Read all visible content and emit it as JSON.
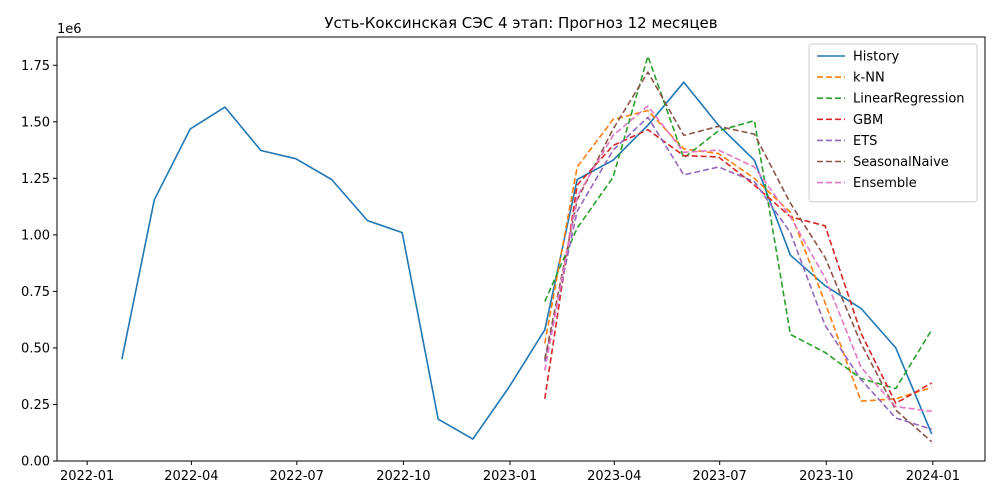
{
  "chart_data": {
    "type": "line",
    "title": "Усть-Коксинская СЭС 4 этап: Прогноз 12 месяцев",
    "xlabel": "",
    "ylabel": "",
    "y_multiplier_label": "1e6",
    "xlim": [
      "2021-12-06",
      "2024-02-15"
    ],
    "ylim": [
      0,
      1875000
    ],
    "x_ticks": [
      "2022-01-01",
      "2022-04-01",
      "2022-07-01",
      "2022-10-01",
      "2023-01-01",
      "2023-04-01",
      "2023-07-01",
      "2023-10-01",
      "2024-01-01"
    ],
    "x_tick_labels": [
      "2022-01",
      "2022-04",
      "2022-07",
      "2022-10",
      "2023-01",
      "2023-04",
      "2023-07",
      "2023-10",
      "2024-01"
    ],
    "y_ticks": [
      0,
      250000,
      500000,
      750000,
      1000000,
      1250000,
      1500000,
      1750000
    ],
    "y_tick_labels": [
      "0.00",
      "0.25",
      "0.50",
      "0.75",
      "1.00",
      "1.25",
      "1.50",
      "1.75"
    ],
    "grid": false,
    "legend_position": "top-right",
    "series": [
      {
        "name": "History",
        "color": "#1f77b4",
        "dash": "solid",
        "x": [
          "2022-01-31",
          "2022-02-28",
          "2022-03-31",
          "2022-04-30",
          "2022-05-31",
          "2022-06-30",
          "2022-07-31",
          "2022-08-31",
          "2022-09-30",
          "2022-10-31",
          "2022-11-30",
          "2022-12-31",
          "2023-01-31",
          "2023-02-28",
          "2023-03-31",
          "2023-04-30",
          "2023-05-31",
          "2023-06-30",
          "2023-07-31",
          "2023-08-31",
          "2023-09-30",
          "2023-10-31",
          "2023-11-30",
          "2023-12-31"
        ],
        "values": [
          450000,
          1155000,
          1468000,
          1565000,
          1373000,
          1337000,
          1245000,
          1063000,
          1010000,
          185000,
          97000,
          325000,
          580000,
          1245000,
          1330000,
          1485000,
          1675000,
          1485000,
          1330000,
          910000,
          775000,
          675000,
          500000,
          120000
        ]
      },
      {
        "name": "k-NN",
        "color": "#ff7f0e",
        "dash": "dashed",
        "x": [
          "2023-01-31",
          "2023-02-28",
          "2023-03-31",
          "2023-04-30",
          "2023-05-31",
          "2023-06-30",
          "2023-07-31",
          "2023-08-31",
          "2023-09-30",
          "2023-10-31",
          "2023-11-30",
          "2023-12-31"
        ],
        "values": [
          520000,
          1300000,
          1510000,
          1550000,
          1380000,
          1360000,
          1250000,
          1100000,
          700000,
          265000,
          275000,
          325000
        ]
      },
      {
        "name": "LinearRegression",
        "color": "#2ca02c",
        "dash": "dashed",
        "x": [
          "2023-01-31",
          "2023-02-28",
          "2023-03-31",
          "2023-04-30",
          "2023-05-31",
          "2023-06-30",
          "2023-07-31",
          "2023-08-31",
          "2023-09-30",
          "2023-10-31",
          "2023-11-30",
          "2023-12-31"
        ],
        "values": [
          705000,
          1030000,
          1255000,
          1790000,
          1340000,
          1460000,
          1505000,
          560000,
          480000,
          365000,
          320000,
          580000
        ]
      },
      {
        "name": "GBM",
        "color": "#d62728",
        "dash": "dashed",
        "x": [
          "2023-01-31",
          "2023-02-28",
          "2023-03-31",
          "2023-04-30",
          "2023-05-31",
          "2023-06-30",
          "2023-07-31",
          "2023-08-31",
          "2023-09-30",
          "2023-10-31",
          "2023-11-30",
          "2023-12-31"
        ],
        "values": [
          275000,
          1220000,
          1395000,
          1465000,
          1350000,
          1345000,
          1220000,
          1080000,
          1040000,
          565000,
          255000,
          345000
        ]
      },
      {
        "name": "ETS",
        "color": "#9467bd",
        "dash": "dashed",
        "x": [
          "2023-01-31",
          "2023-02-28",
          "2023-03-31",
          "2023-04-30",
          "2023-05-31",
          "2023-06-30",
          "2023-07-31",
          "2023-08-31",
          "2023-09-30",
          "2023-10-31",
          "2023-11-30",
          "2023-12-31"
        ],
        "values": [
          440000,
          1105000,
          1375000,
          1520000,
          1265000,
          1300000,
          1235000,
          1010000,
          600000,
          360000,
          190000,
          140000
        ]
      },
      {
        "name": "SeasonalNaive",
        "color": "#8c564b",
        "dash": "dashed",
        "x": [
          "2023-01-31",
          "2023-02-28",
          "2023-03-31",
          "2023-04-30",
          "2023-05-31",
          "2023-06-30",
          "2023-07-31",
          "2023-08-31",
          "2023-09-30",
          "2023-10-31",
          "2023-11-30",
          "2023-12-31"
        ],
        "values": [
          450000,
          1155000,
          1468000,
          1720000,
          1440000,
          1480000,
          1445000,
          1140000,
          900000,
          520000,
          225000,
          85000
        ]
      },
      {
        "name": "Ensemble",
        "color": "#e377c2",
        "dash": "dashed",
        "x": [
          "2023-01-31",
          "2023-02-28",
          "2023-03-31",
          "2023-04-30",
          "2023-05-31",
          "2023-06-30",
          "2023-07-31",
          "2023-08-31",
          "2023-09-30",
          "2023-10-31",
          "2023-11-30",
          "2023-12-31"
        ],
        "values": [
          400000,
          1170000,
          1440000,
          1570000,
          1365000,
          1375000,
          1300000,
          1080000,
          810000,
          415000,
          240000,
          220000
        ]
      }
    ]
  }
}
